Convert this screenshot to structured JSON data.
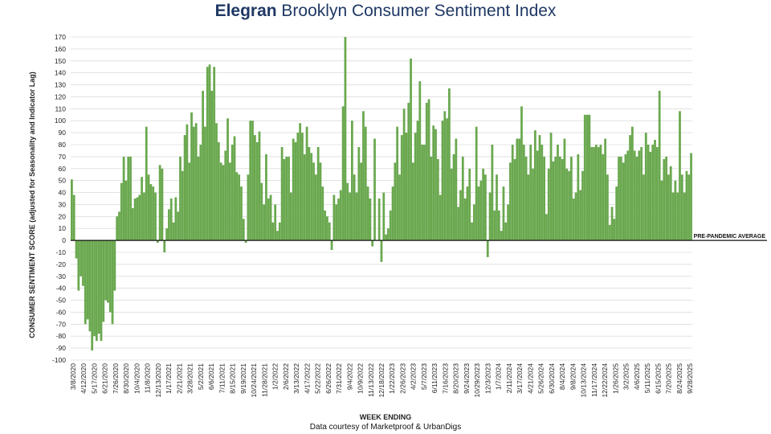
{
  "title_brand": "Elegran",
  "title_rest": " Brooklyn Consumer Sentiment Index",
  "footer_credit": "Data courtesy of Marketproof & UrbanDigs",
  "colors": {
    "bar": "#6aa84f",
    "title": "#1f3864",
    "grid": "#d0d0d0",
    "baseline": "#111111"
  },
  "chart_data": {
    "type": "bar",
    "ylabel": "CONSUMER SENTIMENT SCORE (adjusted for Seasonality and Indicator Lag)",
    "xlabel": "WEEK ENDING",
    "ylim": [
      -100,
      170
    ],
    "ytick_step": 10,
    "grid": true,
    "annotation": "PRE-PANDEMIC AVERAGE",
    "x_tick_labels": [
      "3/8/2020",
      "4/12/2020",
      "5/17/2020",
      "6/21/2020",
      "7/26/2020",
      "8/30/2020",
      "10/4/2020",
      "11/8/2020",
      "12/13/2020",
      "1/17/2021",
      "2/21/2021",
      "3/28/2021",
      "5/2/2021",
      "6/6/2021",
      "7/11/2021",
      "8/15/2021",
      "9/19/2021",
      "10/24/2021",
      "11/28/2021",
      "1/2/2022",
      "2/6/2022",
      "3/13/2022",
      "4/17/2022",
      "5/22/2022",
      "6/26/2022",
      "7/31/2022",
      "9/4/2022",
      "10/9/2022",
      "11/13/2022",
      "12/18/2022",
      "1/22/2023",
      "2/26/2023",
      "4/2/2023",
      "5/7/2023",
      "6/11/2023",
      "7/16/2023",
      "8/20/2023",
      "9/24/2023",
      "10/29/2023",
      "12/3/2023",
      "1/7/2024",
      "2/11/2024",
      "3/17/2024",
      "4/21/2024",
      "5/26/2024",
      "6/30/2024",
      "8/4/2024",
      "9/8/2024",
      "10/13/2024",
      "11/17/2024",
      "12/22/2024",
      "1/26/2025",
      "3/2/2025",
      "4/6/2025",
      "5/11/2025",
      "6/15/2025",
      "7/20/2025",
      "8/24/2025",
      "9/28/2025"
    ],
    "categories_note": "weekly bars from 3/8/2020 to 9/28/2025",
    "values": [
      51,
      38,
      -15,
      -42,
      -30,
      -38,
      -70,
      -66,
      -76,
      -92,
      -80,
      -84,
      -78,
      -84,
      -68,
      -50,
      -52,
      -60,
      -70,
      -42,
      20,
      24,
      48,
      70,
      50,
      70,
      70,
      27,
      35,
      36,
      38,
      53,
      40,
      95,
      55,
      47,
      45,
      40,
      -2,
      63,
      60,
      -10,
      10,
      26,
      35,
      15,
      36,
      24,
      70,
      58,
      88,
      97,
      65,
      107,
      95,
      98,
      70,
      80,
      125,
      95,
      145,
      147,
      125,
      145,
      98,
      82,
      65,
      63,
      75,
      102,
      65,
      80,
      87,
      57,
      55,
      45,
      18,
      -2,
      55,
      100,
      100,
      88,
      82,
      91,
      48,
      30,
      72,
      35,
      38,
      15,
      30,
      8,
      15,
      78,
      68,
      70,
      70,
      40,
      85,
      82,
      90,
      98,
      90,
      72,
      95,
      78,
      73,
      65,
      55,
      78,
      65,
      45,
      25,
      20,
      15,
      -8,
      38,
      30,
      35,
      42,
      112,
      170,
      48,
      40,
      100,
      55,
      40,
      78,
      65,
      108,
      95,
      45,
      35,
      -5,
      85,
      0,
      35,
      -18,
      40,
      5,
      10,
      25,
      45,
      65,
      95,
      55,
      88,
      110,
      90,
      115,
      152,
      65,
      90,
      100,
      133,
      80,
      80,
      115,
      118,
      70,
      96,
      93,
      68,
      38,
      100,
      108,
      102,
      127,
      60,
      72,
      85,
      28,
      42,
      70,
      35,
      45,
      60,
      15,
      30,
      95,
      45,
      50,
      60,
      55,
      -14,
      40,
      80,
      25,
      55,
      25,
      8,
      45,
      15,
      30,
      65,
      80,
      68,
      85,
      85,
      112,
      80,
      70,
      55,
      80,
      60,
      92,
      75,
      88,
      80,
      70,
      22,
      60,
      90,
      66,
      70,
      80,
      70,
      68,
      85,
      60,
      58,
      70,
      35,
      40,
      72,
      42,
      58,
      105,
      105,
      105,
      78,
      78,
      80,
      78,
      80,
      72,
      85,
      55,
      13,
      28,
      18,
      45,
      70,
      70,
      65,
      72,
      75,
      88,
      95,
      75,
      70,
      75,
      78,
      55,
      90,
      80,
      74,
      80,
      84,
      78,
      125,
      50,
      68,
      70,
      55,
      62,
      40,
      50,
      40,
      108,
      55,
      40,
      58,
      55,
      73
    ]
  }
}
